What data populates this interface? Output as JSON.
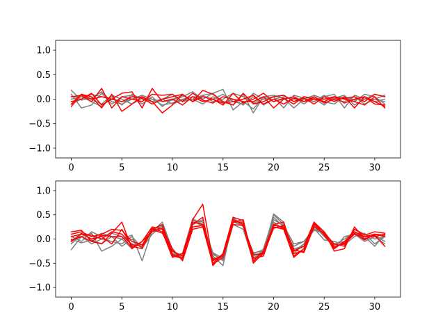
{
  "colors": {
    "gray": "#7f7f7f",
    "red": "#ff0000",
    "axis": "#000000",
    "background": "#ffffff"
  },
  "chart_data": [
    {
      "type": "line",
      "position": "top",
      "xlim": [
        -1.55,
        32.55
      ],
      "ylim": [
        -1.2,
        1.2
      ],
      "xticks": [
        0,
        5,
        10,
        15,
        20,
        25,
        30
      ],
      "yticks": [
        -1.0,
        -0.5,
        0.0,
        0.5,
        1.0
      ],
      "ytick_labels": [
        "−1.0",
        "−0.5",
        "0.0",
        "0.5",
        "1.0"
      ],
      "grid": false,
      "x": [
        0,
        1,
        2,
        3,
        4,
        5,
        6,
        7,
        8,
        9,
        10,
        11,
        12,
        13,
        14,
        15,
        16,
        17,
        18,
        19,
        20,
        21,
        22,
        23,
        24,
        25,
        26,
        27,
        28,
        29,
        30,
        31
      ],
      "series": [
        {
          "color": "gray",
          "values": [
            0.18,
            -0.02,
            0.02,
            0.15,
            -0.05,
            -0.1,
            0.0,
            0.08,
            0.0,
            -0.05,
            -0.02,
            0.05,
            0.15,
            0.0,
            0.12,
            0.2,
            -0.22,
            -0.05,
            -0.2,
            0.05,
            0.08,
            0.02,
            -0.18,
            0.0,
            -0.05,
            0.05,
            0.1,
            -0.18,
            0.08,
            0.0,
            0.1,
            0.05
          ]
        },
        {
          "color": "gray",
          "values": [
            0.1,
            -0.18,
            -0.12,
            0.12,
            -0.1,
            0.05,
            0.08,
            -0.1,
            0.05,
            -0.15,
            0.0,
            0.08,
            -0.05,
            0.08,
            0.12,
            -0.08,
            0.0,
            -0.12,
            0.12,
            0.0,
            0.05,
            -0.18,
            0.08,
            0.02,
            -0.05,
            0.08,
            -0.02,
            -0.05,
            0.05,
            -0.1,
            0.0,
            -0.05
          ]
        },
        {
          "color": "gray",
          "values": [
            -0.1,
            0.0,
            0.1,
            0.05,
            0.0,
            -0.05,
            0.0,
            0.05,
            -0.05,
            0.0,
            0.1,
            -0.05,
            0.0,
            0.08,
            -0.05,
            0.0,
            0.12,
            0.05,
            -0.08,
            0.0,
            0.05,
            0.08,
            -0.05,
            0.05,
            0.02,
            -0.12,
            0.05,
            0.02,
            -0.05,
            0.1,
            0.05,
            -0.1
          ]
        },
        {
          "color": "gray",
          "values": [
            0.05,
            0.05,
            -0.05,
            -0.15,
            0.05,
            -0.12,
            0.1,
            0.0,
            -0.05,
            0.0,
            -0.1,
            -0.02,
            0.0,
            -0.1,
            0.05,
            -0.05,
            -0.12,
            0.1,
            -0.28,
            0.05,
            -0.05,
            0.0,
            0.05,
            -0.1,
            0.05,
            -0.05,
            -0.1,
            0.05,
            -0.02,
            0.05,
            -0.05,
            0.0
          ]
        },
        {
          "color": "gray",
          "values": [
            0.0,
            0.05,
            0.0,
            -0.1,
            0.08,
            0.0,
            -0.1,
            0.02,
            0.0,
            -0.12,
            -0.08,
            0.0,
            0.05,
            0.05,
            0.0,
            0.1,
            -0.05,
            -0.1,
            0.05,
            -0.12,
            0.0,
            0.05,
            0.0,
            0.0,
            0.08,
            0.0,
            0.02,
            0.08,
            -0.12,
            0.0,
            0.0,
            0.08
          ]
        },
        {
          "color": "red",
          "values": [
            -0.15,
            0.1,
            0.05,
            -0.18,
            0.1,
            -0.25,
            -0.1,
            0.05,
            -0.05,
            -0.28,
            -0.12,
            0.1,
            -0.05,
            0.18,
            0.1,
            -0.05,
            -0.12,
            0.12,
            -0.1,
            -0.05,
            0.05,
            0.08,
            -0.05,
            0.02,
            -0.1,
            0.05,
            -0.05,
            0.05,
            -0.18,
            0.05,
            -0.1,
            -0.12
          ]
        },
        {
          "color": "red",
          "values": [
            -0.05,
            0.0,
            0.12,
            -0.12,
            0.0,
            0.12,
            0.15,
            -0.18,
            0.22,
            -0.05,
            0.0,
            -0.12,
            0.05,
            -0.05,
            0.0,
            -0.12,
            0.12,
            -0.08,
            0.0,
            0.12,
            -0.05,
            0.02,
            -0.1,
            0.05,
            0.0,
            -0.05,
            0.05,
            -0.08,
            0.0,
            0.05,
            -0.05,
            -0.15
          ]
        },
        {
          "color": "red",
          "values": [
            0.05,
            0.08,
            -0.05,
            0.22,
            -0.18,
            0.05,
            0.0,
            -0.05,
            0.1,
            0.08,
            0.1,
            -0.05,
            0.12,
            -0.02,
            -0.08,
            0.05,
            0.0,
            -0.05,
            -0.05,
            0.05,
            -0.18,
            0.0,
            0.05,
            -0.05,
            0.05,
            -0.08,
            0.0,
            0.02,
            0.05,
            -0.05,
            0.1,
            0.05
          ]
        },
        {
          "color": "red",
          "values": [
            -0.1,
            0.1,
            0.0,
            0.05,
            0.0,
            -0.05,
            0.05,
            0.02,
            -0.1,
            0.0,
            0.05,
            0.1,
            -0.05,
            0.05,
            0.0,
            -0.08,
            -0.05,
            0.0,
            0.08,
            -0.1,
            0.0,
            -0.1,
            0.02,
            -0.05,
            0.0,
            0.0,
            0.05,
            0.0,
            -0.05,
            -0.12,
            0.05,
            -0.18
          ]
        }
      ]
    },
    {
      "type": "line",
      "position": "bottom",
      "xlim": [
        -1.55,
        32.55
      ],
      "ylim": [
        -1.2,
        1.2
      ],
      "xticks": [
        0,
        5,
        10,
        15,
        20,
        25,
        30
      ],
      "yticks": [
        -1.0,
        -0.5,
        0.0,
        0.5,
        1.0
      ],
      "ytick_labels": [
        "−1.0",
        "−0.5",
        "0.0",
        "0.5",
        "1.0"
      ],
      "grid": false,
      "x": [
        0,
        1,
        2,
        3,
        4,
        5,
        6,
        7,
        8,
        9,
        10,
        11,
        12,
        13,
        14,
        15,
        16,
        17,
        18,
        19,
        20,
        21,
        22,
        23,
        24,
        25,
        26,
        27,
        28,
        29,
        30,
        31
      ],
      "series": [
        {
          "color": "gray",
          "values": [
            -0.22,
            0.05,
            0.12,
            -0.25,
            -0.15,
            0.0,
            0.08,
            -0.45,
            0.18,
            0.3,
            -0.25,
            -0.42,
            0.38,
            0.35,
            -0.35,
            -0.55,
            0.42,
            0.3,
            -0.38,
            -0.3,
            0.5,
            0.3,
            -0.2,
            -0.15,
            0.28,
            0.05,
            -0.15,
            -0.1,
            0.2,
            0.1,
            0.0,
            0.05
          ]
        },
        {
          "color": "gray",
          "values": [
            -0.1,
            0.1,
            0.0,
            0.12,
            0.05,
            -0.15,
            0.0,
            -0.2,
            0.22,
            0.25,
            -0.3,
            -0.35,
            0.35,
            0.3,
            -0.28,
            -0.4,
            0.45,
            0.25,
            -0.28,
            -0.25,
            0.35,
            0.2,
            -0.15,
            -0.05,
            0.2,
            0.15,
            -0.12,
            0.0,
            0.15,
            0.05,
            -0.15,
            0.1
          ]
        },
        {
          "color": "gray",
          "values": [
            0.05,
            -0.05,
            0.15,
            0.05,
            0.12,
            0.05,
            -0.1,
            -0.15,
            0.15,
            0.35,
            -0.22,
            -0.4,
            0.4,
            0.25,
            -0.3,
            -0.45,
            0.3,
            0.2,
            -0.45,
            -0.2,
            0.45,
            0.25,
            -0.3,
            -0.1,
            0.25,
            0.1,
            -0.2,
            0.05,
            0.1,
            -0.05,
            0.05,
            -0.1
          ]
        },
        {
          "color": "gray",
          "values": [
            0.0,
            -0.08,
            -0.02,
            -0.1,
            0.05,
            0.0,
            -0.2,
            -0.05,
            0.18,
            0.22,
            -0.3,
            -0.38,
            0.3,
            0.4,
            -0.4,
            -0.38,
            0.38,
            0.32,
            -0.35,
            -0.28,
            0.52,
            0.35,
            -0.25,
            -0.1,
            0.18,
            0.12,
            -0.1,
            -0.05,
            0.15,
            0.0,
            0.08,
            -0.05
          ]
        },
        {
          "color": "gray",
          "values": [
            -0.05,
            0.05,
            -0.1,
            0.0,
            -0.05,
            -0.1,
            0.05,
            -0.18,
            0.1,
            0.28,
            -0.35,
            -0.3,
            0.42,
            0.3,
            -0.32,
            -0.42,
            0.35,
            0.28,
            -0.3,
            -0.22,
            0.4,
            0.28,
            -0.1,
            -0.05,
            0.22,
            -0.02,
            -0.05,
            -0.12,
            0.05,
            0.12,
            -0.1,
            0.05
          ]
        },
        {
          "color": "red",
          "values": [
            0.15,
            0.18,
            -0.05,
            -0.1,
            0.12,
            0.35,
            -0.2,
            -0.05,
            0.25,
            0.2,
            -0.35,
            -0.4,
            0.4,
            0.72,
            -0.45,
            -0.32,
            0.35,
            0.4,
            -0.5,
            -0.28,
            0.28,
            0.25,
            -0.3,
            -0.25,
            0.35,
            0.15,
            -0.25,
            -0.2,
            0.25,
            0.0,
            0.08,
            -0.15
          ]
        },
        {
          "color": "red",
          "values": [
            -0.05,
            0.12,
            0.0,
            0.05,
            -0.1,
            0.2,
            -0.15,
            -0.2,
            0.2,
            0.3,
            -0.32,
            -0.4,
            0.3,
            0.45,
            -0.55,
            -0.3,
            0.45,
            0.38,
            -0.45,
            -0.25,
            0.3,
            0.35,
            -0.35,
            -0.2,
            0.3,
            0.1,
            -0.2,
            -0.05,
            0.15,
            0.05,
            0.1,
            0.05
          ]
        },
        {
          "color": "red",
          "values": [
            0.05,
            0.1,
            0.08,
            0.0,
            0.15,
            0.1,
            -0.12,
            -0.15,
            0.22,
            0.15,
            -0.38,
            -0.3,
            0.35,
            0.3,
            -0.42,
            -0.35,
            0.35,
            0.35,
            -0.4,
            -0.35,
            0.25,
            0.2,
            -0.38,
            -0.2,
            0.32,
            0.15,
            -0.15,
            -0.1,
            0.1,
            0.05,
            0.05,
            0.1
          ]
        },
        {
          "color": "red",
          "values": [
            0.1,
            0.15,
            0.05,
            0.1,
            0.2,
            0.18,
            -0.05,
            -0.12,
            0.2,
            0.12,
            -0.25,
            -0.35,
            0.25,
            0.28,
            -0.5,
            -0.3,
            0.4,
            0.3,
            -0.32,
            -0.3,
            0.22,
            0.28,
            -0.22,
            -0.28,
            0.25,
            0.12,
            -0.1,
            -0.15,
            0.2,
            0.08,
            0.15,
            0.12
          ]
        },
        {
          "color": "red",
          "values": [
            -0.02,
            0.05,
            -0.05,
            0.08,
            0.05,
            0.05,
            -0.18,
            -0.05,
            0.15,
            0.22,
            -0.2,
            -0.45,
            0.2,
            0.25,
            -0.52,
            -0.38,
            0.3,
            0.28,
            -0.48,
            -0.3,
            0.3,
            0.22,
            -0.25,
            -0.15,
            0.35,
            0.08,
            -0.18,
            -0.08,
            0.12,
            -0.02,
            0.1,
            0.08
          ]
        }
      ]
    }
  ]
}
